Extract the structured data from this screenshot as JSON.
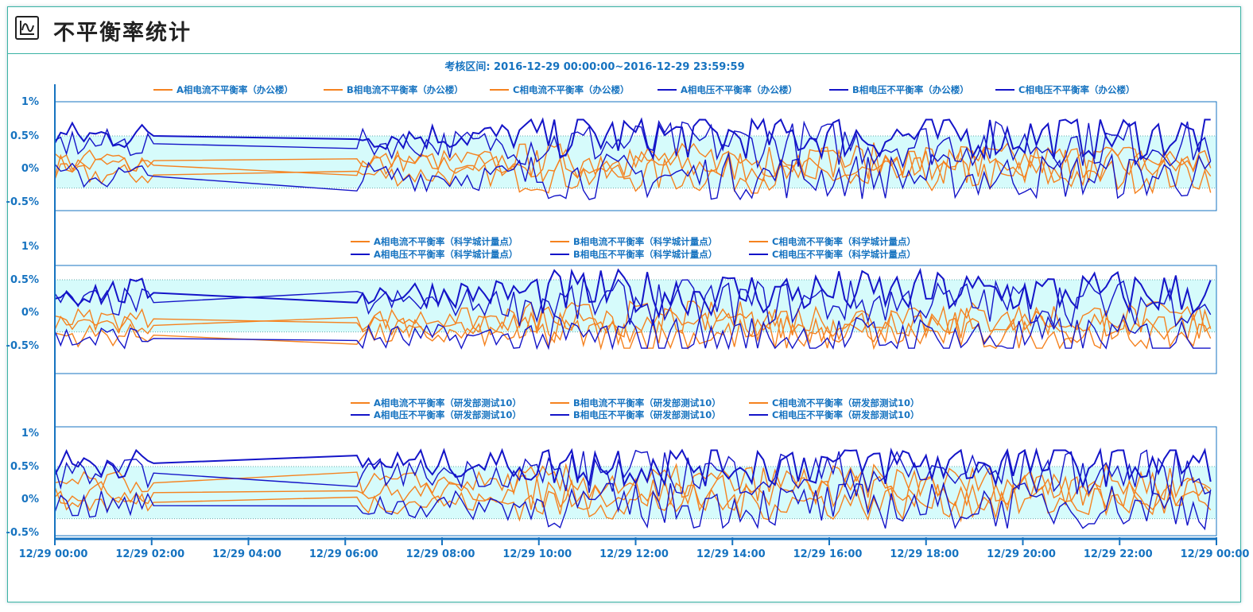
{
  "page": {
    "title": "不平衡率统计",
    "icon": "waveform-icon"
  },
  "colors": {
    "current": "#f5821f",
    "voltage": "#1414c8",
    "axis": "#1673c0",
    "label": "#1673c0",
    "band_fill": "#d6fbfb",
    "panel_border": "#1673c0"
  },
  "chart_data": {
    "type": "line",
    "period_label": "考核区间: 2016-12-29  00:00:00~2016-12-29  23:59:59",
    "x_ticks": [
      "12/29 00:00",
      "12/29 02:00",
      "12/29 04:00",
      "12/29 06:00",
      "12/29 08:00",
      "12/29 10:00",
      "12/29 12:00",
      "12/29 14:00",
      "12/29 16:00",
      "12/29 18:00",
      "12/29 20:00",
      "12/29 22:00",
      "12/29 00:00"
    ],
    "x_range_hours": [
      0,
      24
    ],
    "y_ticks": [
      "1%",
      "0.5%",
      "0%",
      "-0.5%"
    ],
    "y_tick_values": [
      1,
      0.5,
      0,
      -0.5
    ],
    "panels": [
      {
        "location": "办公楼",
        "ylim": [
          -0.65,
          1.0
        ],
        "legend": [
          "A相电流不平衡率（办公楼）",
          "B相电流不平衡率（办公楼）",
          "C相电流不平衡率（办公楼）",
          "A相电压不平衡率（办公楼）",
          "B相电压不平衡率（办公楼）",
          "C相电压不平衡率（办公楼）"
        ],
        "series_base": {
          "current": [
            0.05,
            -0.1,
            0.12
          ],
          "voltage": [
            0.5,
            0.38,
            -0.12
          ]
        }
      },
      {
        "location": "科学城计量点",
        "ylim": [
          -0.9,
          1.0
        ],
        "legend": [
          "A相电流不平衡率（科学城计量点）",
          "B相电流不平衡率（科学城计量点）",
          "C相电流不平衡率（科学城计量点）",
          "A相电压不平衡率（科学城计量点）",
          "B相电压不平衡率（科学城计量点）",
          "C相电压不平衡率（科学城计量点）"
        ],
        "series_base": {
          "current": [
            -0.2,
            -0.35,
            -0.1
          ],
          "voltage": [
            0.3,
            0.15,
            -0.4
          ]
        }
      },
      {
        "location": "研发部测试10",
        "ylim": [
          -0.55,
          1.0
        ],
        "legend": [
          "A相电流不平衡率（研发部测试10）",
          "B相电流不平衡率（研发部测试10）",
          "C相电流不平衡率（研发部测试10）",
          "A相电压不平衡率（研发部测试10）",
          "B相电压不平衡率（研发部测试10）",
          "C相电压不平衡率（研发部测试10）"
        ],
        "series_base": {
          "current": [
            0.1,
            -0.05,
            0.25
          ],
          "voltage": [
            0.55,
            0.4,
            -0.1
          ]
        }
      }
    ]
  }
}
